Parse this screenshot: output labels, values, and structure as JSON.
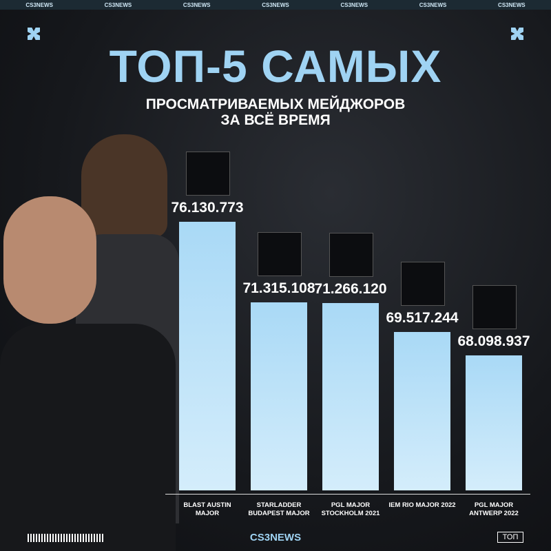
{
  "brand": "CS3NEWS",
  "tag": "ТОП",
  "chart_data": {
    "type": "bar",
    "title": "ТОП-5 САМЫХ",
    "subtitle": [
      "ПРОСМАТРИВАЕМЫХ МЕЙДЖОРОВ",
      "ЗА ВСЁ ВРЕМЯ"
    ],
    "categories": [
      "BLAST AUSTIN MAJOR",
      "STARLADDER BUDAPEST MAJOR",
      "PGL MAJOR STOCKHOLM 2021",
      "IEM RIO MAJOR 2022",
      "PGL MAJOR ANTWERP 2022"
    ],
    "values": [
      76130773,
      71315108,
      71266120,
      69517244,
      68098937
    ],
    "value_labels": [
      "76.130.773",
      "71.315.108",
      "71.266.120",
      "69.517.244",
      "68.098.937"
    ],
    "color": "#a9d9f6",
    "ylim": [
      60000000,
      78000000
    ]
  }
}
